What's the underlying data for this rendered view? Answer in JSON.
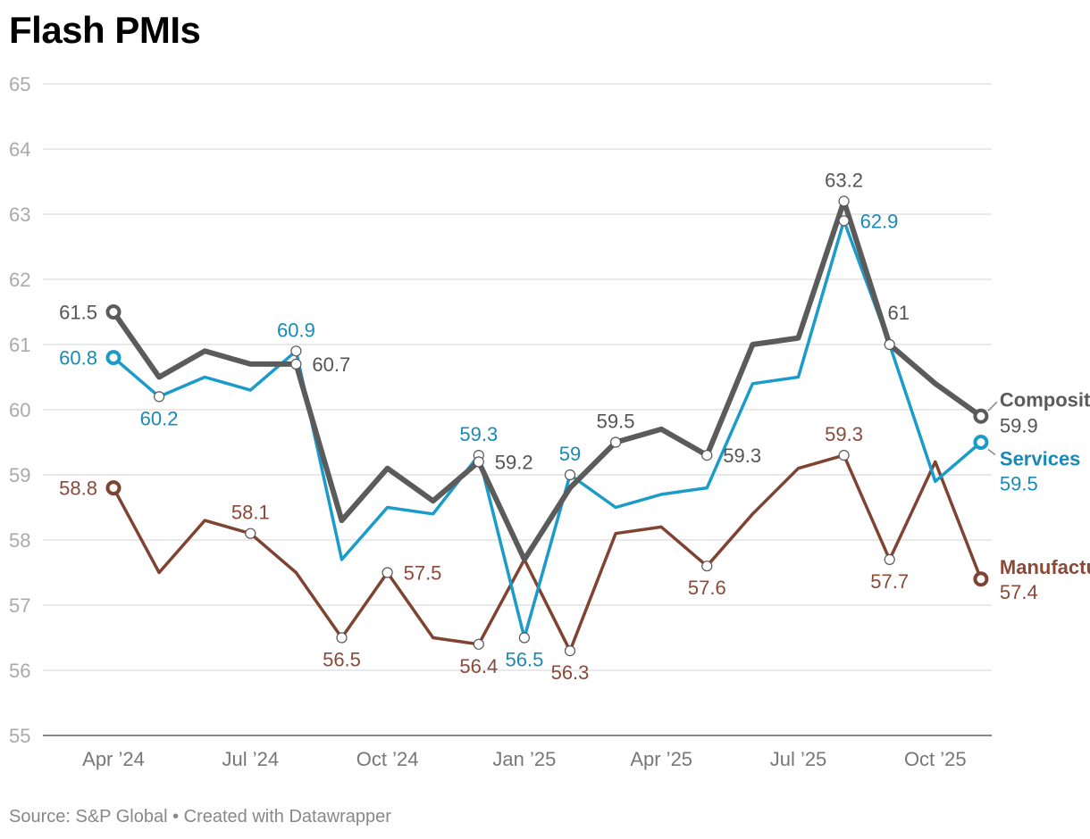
{
  "title": "Flash PMIs",
  "footer": "Source: S&P Global • Created with Datawrapper",
  "chart_data": {
    "type": "line",
    "title": "Flash PMIs",
    "xlabel": "",
    "ylabel": "",
    "ylim": [
      55,
      65
    ],
    "yticks": [
      55,
      56,
      57,
      58,
      59,
      60,
      61,
      62,
      63,
      64,
      65
    ],
    "x": [
      "Apr 2024",
      "May 2024",
      "Jun 2024",
      "Jul 2024",
      "Aug 2024",
      "Sep 2024",
      "Oct 2024",
      "Nov 2024",
      "Dec 2024",
      "Jan 2025",
      "Feb 2025",
      "Mar 2025",
      "Apr 2025",
      "May 2025",
      "Jun 2025",
      "Jul 2025",
      "Aug 2025",
      "Sep 2025",
      "Oct 2025",
      "Nov 2025"
    ],
    "xtick_labels": [
      {
        "index": 0,
        "label": "Apr ’24"
      },
      {
        "index": 3,
        "label": "Jul ’24"
      },
      {
        "index": 6,
        "label": "Oct ’24"
      },
      {
        "index": 9,
        "label": "Jan ’25"
      },
      {
        "index": 12,
        "label": "Apr ’25"
      },
      {
        "index": 15,
        "label": "Jul ’25"
      },
      {
        "index": 18,
        "label": "Oct ’25"
      }
    ],
    "series": [
      {
        "name": "Composite",
        "color": "#5b5b5b",
        "values": [
          61.5,
          60.5,
          60.9,
          60.7,
          60.7,
          58.3,
          59.1,
          58.6,
          59.2,
          57.7,
          58.8,
          59.5,
          59.7,
          59.3,
          61.0,
          61.1,
          63.2,
          61.0,
          60.4,
          59.9
        ],
        "labels": [
          {
            "index": 0,
            "text": "61.5",
            "pos": "left"
          },
          {
            "index": 4,
            "text": "60.7",
            "pos": "right"
          },
          {
            "index": 8,
            "text": "59.2",
            "pos": "right"
          },
          {
            "index": 11,
            "text": "59.5",
            "pos": "above"
          },
          {
            "index": 13,
            "text": "59.3",
            "pos": "right"
          },
          {
            "index": 16,
            "text": "63.2",
            "pos": "above"
          },
          {
            "index": 17,
            "text": "61",
            "pos": "above-right"
          }
        ],
        "end_label": "Composite",
        "end_value": "59.9"
      },
      {
        "name": "Services",
        "color": "#1b9bc9",
        "label_color": "#1a8ab5",
        "values": [
          60.8,
          60.2,
          60.5,
          60.3,
          60.9,
          57.7,
          58.5,
          58.4,
          59.3,
          56.5,
          59.0,
          58.5,
          58.7,
          58.8,
          60.4,
          60.5,
          62.9,
          61.0,
          58.9,
          59.5
        ],
        "labels": [
          {
            "index": 0,
            "text": "60.8",
            "pos": "left"
          },
          {
            "index": 1,
            "text": "60.2",
            "pos": "below"
          },
          {
            "index": 4,
            "text": "60.9",
            "pos": "above"
          },
          {
            "index": 8,
            "text": "59.3",
            "pos": "above"
          },
          {
            "index": 9,
            "text": "56.5",
            "pos": "below"
          },
          {
            "index": 10,
            "text": "59",
            "pos": "above"
          },
          {
            "index": 16,
            "text": "62.9",
            "pos": "right"
          }
        ],
        "end_label": "Services",
        "end_value": "59.5"
      },
      {
        "name": "Manufacturing",
        "color": "#7f4332",
        "label_color": "#8a4a39",
        "values": [
          58.8,
          57.5,
          58.3,
          58.1,
          57.5,
          56.5,
          57.5,
          56.5,
          56.4,
          57.7,
          56.3,
          58.1,
          58.2,
          57.6,
          58.4,
          59.1,
          59.3,
          57.7,
          59.2,
          57.4
        ],
        "labels": [
          {
            "index": 0,
            "text": "58.8",
            "pos": "left"
          },
          {
            "index": 3,
            "text": "58.1",
            "pos": "above"
          },
          {
            "index": 5,
            "text": "56.5",
            "pos": "below"
          },
          {
            "index": 6,
            "text": "57.5",
            "pos": "right"
          },
          {
            "index": 8,
            "text": "56.4",
            "pos": "below"
          },
          {
            "index": 10,
            "text": "56.3",
            "pos": "below"
          },
          {
            "index": 13,
            "text": "57.6",
            "pos": "below"
          },
          {
            "index": 16,
            "text": "59.3",
            "pos": "above"
          },
          {
            "index": 17,
            "text": "57.7",
            "pos": "below"
          }
        ],
        "end_label": "Manufacturing",
        "end_value": "57.4"
      }
    ]
  }
}
